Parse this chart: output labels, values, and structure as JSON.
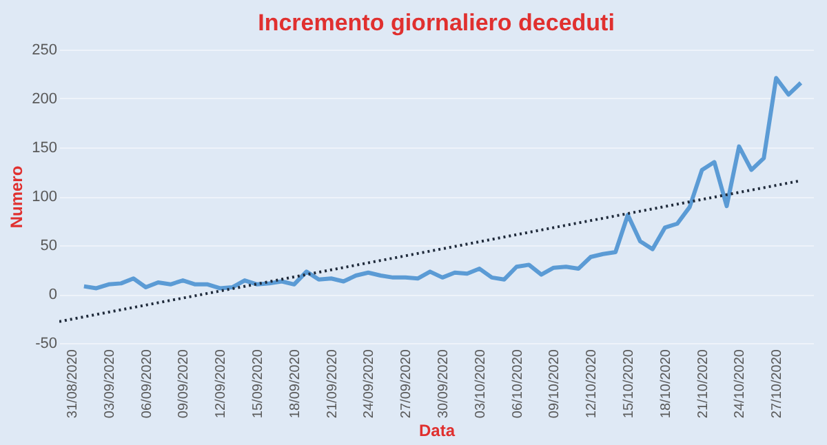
{
  "chart_data": {
    "type": "line",
    "title": "Incremento giornaliero deceduti",
    "xlabel": "Data",
    "ylabel": "Numero",
    "x": [
      "2020-09-01",
      "2020-09-02",
      "2020-09-03",
      "2020-09-04",
      "2020-09-05",
      "2020-09-06",
      "2020-09-07",
      "2020-09-08",
      "2020-09-09",
      "2020-09-10",
      "2020-09-11",
      "2020-09-12",
      "2020-09-13",
      "2020-09-14",
      "2020-09-15",
      "2020-09-16",
      "2020-09-17",
      "2020-09-18",
      "2020-09-19",
      "2020-09-20",
      "2020-09-21",
      "2020-09-22",
      "2020-09-23",
      "2020-09-24",
      "2020-09-25",
      "2020-09-26",
      "2020-09-27",
      "2020-09-28",
      "2020-09-29",
      "2020-09-30",
      "2020-10-01",
      "2020-10-02",
      "2020-10-03",
      "2020-10-04",
      "2020-10-05",
      "2020-10-06",
      "2020-10-07",
      "2020-10-08",
      "2020-10-09",
      "2020-10-10",
      "2020-10-11",
      "2020-10-12",
      "2020-10-13",
      "2020-10-14",
      "2020-10-15",
      "2020-10-16",
      "2020-10-17",
      "2020-10-18",
      "2020-10-19",
      "2020-10-20",
      "2020-10-21",
      "2020-10-22",
      "2020-10-23",
      "2020-10-24",
      "2020-10-25",
      "2020-10-26",
      "2020-10-27",
      "2020-10-28",
      "2020-10-29"
    ],
    "series": [
      {
        "color": "#5b9bd5",
        "line_style": "solid",
        "values": [
          8,
          6,
          10,
          11,
          16,
          7,
          12,
          10,
          14,
          10,
          10,
          6,
          7,
          14,
          10,
          11,
          13,
          10,
          23,
          15,
          16,
          13,
          19,
          22,
          19,
          17,
          17,
          16,
          23,
          17,
          22,
          21,
          26,
          17,
          15,
          28,
          30,
          20,
          27,
          28,
          26,
          38,
          41,
          43,
          81,
          54,
          46,
          68,
          72,
          89,
          127,
          135,
          90,
          151,
          127,
          139,
          221,
          204,
          216
        ]
      },
      {
        "type": "line",
        "color": "#1f2a3a",
        "line_style": "dotted",
        "x": [
          "2020-08-30",
          "2020-10-29"
        ],
        "values": [
          -28,
          116
        ]
      }
    ],
    "xlim": [
      "2020-08-30",
      "2020-10-30"
    ],
    "xticks": [
      {
        "value": "2020-08-31",
        "label": "31/08/2020"
      },
      {
        "value": "2020-09-03",
        "label": "03/09/2020"
      },
      {
        "value": "2020-09-06",
        "label": "06/09/2020"
      },
      {
        "value": "2020-09-09",
        "label": "09/09/2020"
      },
      {
        "value": "2020-09-12",
        "label": "12/09/2020"
      },
      {
        "value": "2020-09-15",
        "label": "15/09/2020"
      },
      {
        "value": "2020-09-18",
        "label": "18/09/2020"
      },
      {
        "value": "2020-09-21",
        "label": "21/09/2020"
      },
      {
        "value": "2020-09-24",
        "label": "24/09/2020"
      },
      {
        "value": "2020-09-27",
        "label": "27/09/2020"
      },
      {
        "value": "2020-09-30",
        "label": "30/09/2020"
      },
      {
        "value": "2020-10-03",
        "label": "03/10/2020"
      },
      {
        "value": "2020-10-06",
        "label": "06/10/2020"
      },
      {
        "value": "2020-10-09",
        "label": "09/10/2020"
      },
      {
        "value": "2020-10-12",
        "label": "12/10/2020"
      },
      {
        "value": "2020-10-15",
        "label": "15/10/2020"
      },
      {
        "value": "2020-10-18",
        "label": "18/10/2020"
      },
      {
        "value": "2020-10-21",
        "label": "21/10/2020"
      },
      {
        "value": "2020-10-24",
        "label": "24/10/2020"
      },
      {
        "value": "2020-10-27",
        "label": "27/10/2020"
      }
    ],
    "ylim": [
      -50,
      250
    ],
    "yticks": [
      -50,
      0,
      50,
      100,
      150,
      200,
      250
    ],
    "grid": "y",
    "marker": "none"
  }
}
